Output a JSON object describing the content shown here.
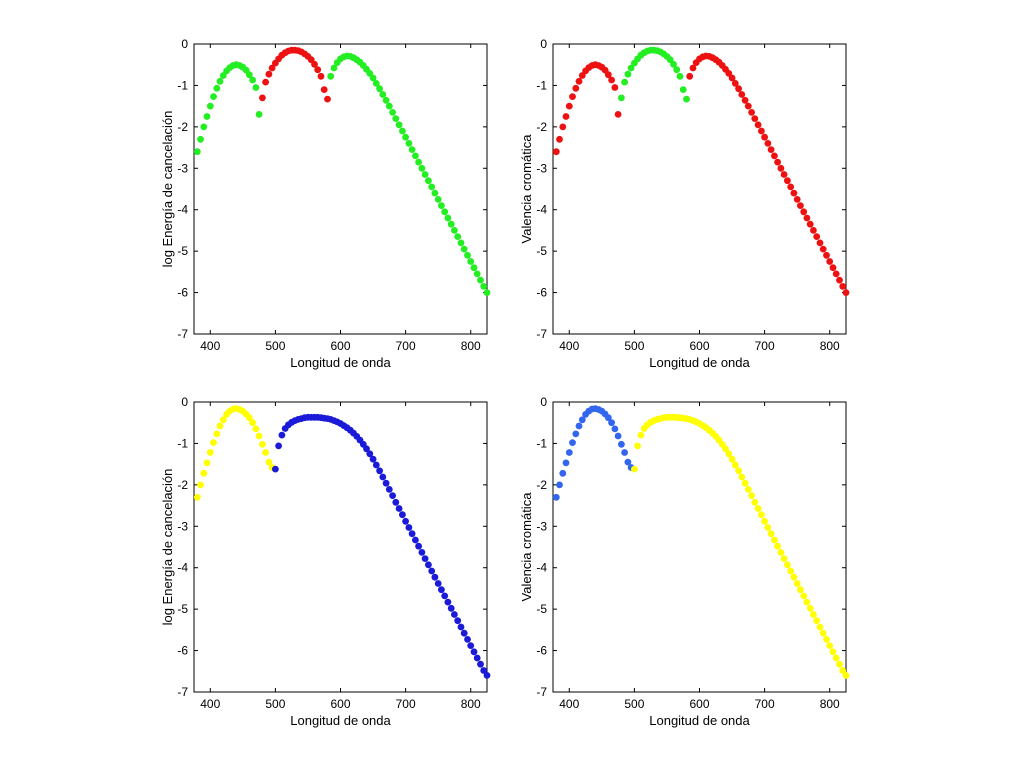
{
  "colors": {
    "green": "#22ee22",
    "red": "#ee1111",
    "yellow": "#ffff00",
    "blue": "#1a1ad8",
    "light_blue": "#3366ee"
  },
  "chart_data": [
    {
      "type": "scatter",
      "position": "top-left",
      "xlabel": "Longitud de onda",
      "ylabel": "log Energía de cancelación",
      "xlim": [
        375,
        825
      ],
      "ylim": [
        -7,
        0
      ],
      "xticks": [
        "400",
        "500",
        "600",
        "700",
        "800"
      ],
      "yticks": [
        "0",
        "-1",
        "-2",
        "-3",
        "-4",
        "-5",
        "-6",
        "-7"
      ],
      "x_step": 5,
      "segments": [
        {
          "color": "green",
          "x": [
            380,
            385,
            390,
            395,
            400,
            405,
            410,
            415,
            420,
            425,
            430,
            435,
            440,
            445,
            450,
            455,
            460,
            465,
            470,
            475
          ],
          "y": [
            -2.6,
            -2.3,
            -2.0,
            -1.75,
            -1.5,
            -1.27,
            -1.07,
            -0.9,
            -0.76,
            -0.65,
            -0.57,
            -0.52,
            -0.5,
            -0.52,
            -0.56,
            -0.63,
            -0.74,
            -0.87,
            -1.05,
            -1.7
          ]
        },
        {
          "color": "red",
          "x": [
            480,
            485,
            490,
            495,
            500,
            505,
            510,
            515,
            520,
            525,
            530,
            535,
            540,
            545,
            550,
            555,
            560,
            565,
            570,
            575,
            580
          ],
          "y": [
            -1.3,
            -0.92,
            -0.73,
            -0.58,
            -0.46,
            -0.36,
            -0.27,
            -0.21,
            -0.17,
            -0.15,
            -0.15,
            -0.16,
            -0.19,
            -0.24,
            -0.3,
            -0.38,
            -0.49,
            -0.62,
            -0.78,
            -1.1,
            -1.33
          ]
        },
        {
          "color": "green",
          "x": [
            585,
            590,
            595,
            600,
            605,
            610,
            615,
            620,
            625,
            630,
            635,
            640,
            645,
            650,
            655,
            660,
            665,
            670,
            675,
            680,
            685,
            690,
            695,
            700,
            705,
            710,
            715,
            720,
            725,
            730,
            735,
            740,
            745,
            750,
            755,
            760,
            765,
            770,
            775,
            780,
            785,
            790,
            795,
            800,
            805,
            810,
            815,
            820,
            825
          ],
          "y": [
            -0.78,
            -0.58,
            -0.45,
            -0.36,
            -0.31,
            -0.29,
            -0.3,
            -0.33,
            -0.38,
            -0.44,
            -0.52,
            -0.61,
            -0.71,
            -0.82,
            -0.95,
            -1.08,
            -1.22,
            -1.36,
            -1.5,
            -1.65,
            -1.8,
            -1.95,
            -2.1,
            -2.25,
            -2.4,
            -2.55,
            -2.7,
            -2.85,
            -3.0,
            -3.15,
            -3.3,
            -3.45,
            -3.6,
            -3.75,
            -3.9,
            -4.05,
            -4.2,
            -4.35,
            -4.5,
            -4.65,
            -4.8,
            -4.95,
            -5.1,
            -5.25,
            -5.4,
            -5.55,
            -5.7,
            -5.85,
            -6.0
          ]
        }
      ]
    },
    {
      "type": "scatter",
      "position": "top-right",
      "xlabel": "Longitud de onda",
      "ylabel": "Valencia cromática",
      "xlim": [
        375,
        825
      ],
      "ylim": [
        -7,
        0
      ],
      "xticks": [
        "400",
        "500",
        "600",
        "700",
        "800"
      ],
      "yticks": [
        "0",
        "-1",
        "-2",
        "-3",
        "-4",
        "-5",
        "-6",
        "-7"
      ],
      "segments": [
        {
          "color": "red",
          "x": [
            380,
            385,
            390,
            395,
            400,
            405,
            410,
            415,
            420,
            425,
            430,
            435,
            440,
            445,
            450,
            455,
            460,
            465,
            470,
            475
          ],
          "y": [
            -2.6,
            -2.3,
            -2.0,
            -1.75,
            -1.5,
            -1.27,
            -1.07,
            -0.9,
            -0.76,
            -0.65,
            -0.57,
            -0.52,
            -0.5,
            -0.52,
            -0.56,
            -0.63,
            -0.74,
            -0.87,
            -1.05,
            -1.7
          ]
        },
        {
          "color": "green",
          "x": [
            480,
            485,
            490,
            495,
            500,
            505,
            510,
            515,
            520,
            525,
            530,
            535,
            540,
            545,
            550,
            555,
            560,
            565,
            570,
            575,
            580
          ],
          "y": [
            -1.3,
            -0.92,
            -0.73,
            -0.58,
            -0.46,
            -0.36,
            -0.27,
            -0.21,
            -0.17,
            -0.15,
            -0.15,
            -0.16,
            -0.19,
            -0.24,
            -0.3,
            -0.38,
            -0.49,
            -0.62,
            -0.78,
            -1.1,
            -1.33
          ]
        },
        {
          "color": "red",
          "x": [
            585,
            590,
            595,
            600,
            605,
            610,
            615,
            620,
            625,
            630,
            635,
            640,
            645,
            650,
            655,
            660,
            665,
            670,
            675,
            680,
            685,
            690,
            695,
            700,
            705,
            710,
            715,
            720,
            725,
            730,
            735,
            740,
            745,
            750,
            755,
            760,
            765,
            770,
            775,
            780,
            785,
            790,
            795,
            800,
            805,
            810,
            815,
            820,
            825
          ],
          "y": [
            -0.78,
            -0.58,
            -0.45,
            -0.36,
            -0.31,
            -0.29,
            -0.3,
            -0.33,
            -0.38,
            -0.44,
            -0.52,
            -0.61,
            -0.71,
            -0.82,
            -0.95,
            -1.08,
            -1.22,
            -1.36,
            -1.5,
            -1.65,
            -1.8,
            -1.95,
            -2.1,
            -2.25,
            -2.4,
            -2.55,
            -2.7,
            -2.85,
            -3.0,
            -3.15,
            -3.3,
            -3.45,
            -3.6,
            -3.75,
            -3.9,
            -4.05,
            -4.2,
            -4.35,
            -4.5,
            -4.65,
            -4.8,
            -4.95,
            -5.1,
            -5.25,
            -5.4,
            -5.55,
            -5.7,
            -5.85,
            -6.0
          ]
        }
      ]
    },
    {
      "type": "scatter",
      "position": "bottom-left",
      "xlabel": "Longitud de onda",
      "ylabel": "log Energía de cancelación",
      "xlim": [
        375,
        825
      ],
      "ylim": [
        -7,
        0
      ],
      "xticks": [
        "400",
        "500",
        "600",
        "700",
        "800"
      ],
      "yticks": [
        "0",
        "-1",
        "-2",
        "-3",
        "-4",
        "-5",
        "-6",
        "-7"
      ],
      "segments": [
        {
          "color": "yellow",
          "x": [
            380,
            385,
            390,
            395,
            400,
            405,
            410,
            415,
            420,
            425,
            430,
            435,
            440,
            445,
            450,
            455,
            460,
            465,
            470,
            475,
            480,
            485,
            490,
            495
          ],
          "y": [
            -2.3,
            -2.0,
            -1.72,
            -1.47,
            -1.22,
            -0.98,
            -0.77,
            -0.58,
            -0.43,
            -0.3,
            -0.22,
            -0.17,
            -0.16,
            -0.18,
            -0.22,
            -0.29,
            -0.38,
            -0.5,
            -0.65,
            -0.82,
            -1.02,
            -1.22,
            -1.45,
            -1.58
          ]
        },
        {
          "color": "blue",
          "x": [
            500,
            505,
            510,
            515,
            520,
            525,
            530,
            535,
            540,
            545,
            550,
            555,
            560,
            565,
            570,
            575,
            580,
            585,
            590,
            595,
            600,
            605,
            610,
            615,
            620,
            625,
            630,
            635,
            640,
            645,
            650,
            655,
            660,
            665,
            670,
            675,
            680,
            685,
            690,
            695,
            700,
            705,
            710,
            715,
            720,
            725,
            730,
            735,
            740,
            745,
            750,
            755,
            760,
            765,
            770,
            775,
            780,
            785,
            790,
            795,
            800,
            805,
            810,
            815,
            820,
            825
          ],
          "y": [
            -1.62,
            -1.06,
            -0.8,
            -0.64,
            -0.55,
            -0.49,
            -0.45,
            -0.42,
            -0.4,
            -0.38,
            -0.37,
            -0.37,
            -0.37,
            -0.37,
            -0.38,
            -0.39,
            -0.4,
            -0.42,
            -0.45,
            -0.48,
            -0.52,
            -0.57,
            -0.62,
            -0.68,
            -0.75,
            -0.83,
            -0.92,
            -1.02,
            -1.13,
            -1.25,
            -1.38,
            -1.52,
            -1.66,
            -1.81,
            -1.96,
            -2.11,
            -2.26,
            -2.42,
            -2.57,
            -2.72,
            -2.88,
            -3.03,
            -3.18,
            -3.33,
            -3.48,
            -3.63,
            -3.78,
            -3.93,
            -4.08,
            -4.23,
            -4.38,
            -4.53,
            -4.68,
            -4.83,
            -4.98,
            -5.13,
            -5.28,
            -5.43,
            -5.58,
            -5.73,
            -5.88,
            -6.03,
            -6.18,
            -6.33,
            -6.48,
            -6.6
          ]
        }
      ]
    },
    {
      "type": "scatter",
      "position": "bottom-right",
      "xlabel": "Longitud de onda",
      "ylabel": "Valencia cromática",
      "xlim": [
        375,
        825
      ],
      "ylim": [
        -7,
        0
      ],
      "xticks": [
        "400",
        "500",
        "600",
        "700",
        "800"
      ],
      "yticks": [
        "0",
        "-1",
        "-2",
        "-3",
        "-4",
        "-5",
        "-6",
        "-7"
      ],
      "segments": [
        {
          "color": "light_blue",
          "x": [
            380,
            385,
            390,
            395,
            400,
            405,
            410,
            415,
            420,
            425,
            430,
            435,
            440,
            445,
            450,
            455,
            460,
            465,
            470,
            475,
            480,
            485,
            490,
            495
          ],
          "y": [
            -2.3,
            -2.0,
            -1.72,
            -1.47,
            -1.22,
            -0.98,
            -0.77,
            -0.58,
            -0.43,
            -0.3,
            -0.22,
            -0.17,
            -0.16,
            -0.18,
            -0.22,
            -0.29,
            -0.38,
            -0.5,
            -0.65,
            -0.82,
            -1.02,
            -1.22,
            -1.45,
            -1.58
          ]
        },
        {
          "color": "yellow",
          "x": [
            500,
            505,
            510,
            515,
            520,
            525,
            530,
            535,
            540,
            545,
            550,
            555,
            560,
            565,
            570,
            575,
            580,
            585,
            590,
            595,
            600,
            605,
            610,
            615,
            620,
            625,
            630,
            635,
            640,
            645,
            650,
            655,
            660,
            665,
            670,
            675,
            680,
            685,
            690,
            695,
            700,
            705,
            710,
            715,
            720,
            725,
            730,
            735,
            740,
            745,
            750,
            755,
            760,
            765,
            770,
            775,
            780,
            785,
            790,
            795,
            800,
            805,
            810,
            815,
            820,
            825
          ],
          "y": [
            -1.62,
            -1.06,
            -0.8,
            -0.64,
            -0.55,
            -0.49,
            -0.45,
            -0.42,
            -0.4,
            -0.38,
            -0.37,
            -0.37,
            -0.37,
            -0.37,
            -0.38,
            -0.39,
            -0.4,
            -0.42,
            -0.45,
            -0.48,
            -0.52,
            -0.57,
            -0.62,
            -0.68,
            -0.75,
            -0.83,
            -0.92,
            -1.02,
            -1.13,
            -1.25,
            -1.38,
            -1.52,
            -1.66,
            -1.81,
            -1.96,
            -2.11,
            -2.26,
            -2.42,
            -2.57,
            -2.72,
            -2.88,
            -3.03,
            -3.18,
            -3.33,
            -3.48,
            -3.63,
            -3.78,
            -3.93,
            -4.08,
            -4.23,
            -4.38,
            -4.53,
            -4.68,
            -4.83,
            -4.98,
            -5.13,
            -5.28,
            -5.43,
            -5.58,
            -5.73,
            -5.88,
            -6.03,
            -6.18,
            -6.33,
            -6.48,
            -6.6
          ]
        }
      ]
    }
  ]
}
